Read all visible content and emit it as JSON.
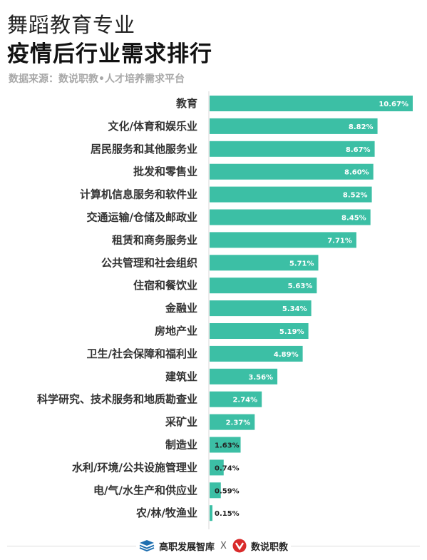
{
  "header": {
    "title_line1": "舞蹈教育专业",
    "title_line2": "疫情后行业需求排行",
    "source": "数据来源：数说职教•人才培养需求平台"
  },
  "footer": {
    "brand_left": "高职发展智库",
    "separator": "X",
    "brand_right": "数说职教"
  },
  "colors": {
    "bar": "#3cbfa5",
    "axis": "#d8d8d8",
    "logo_left": "#1f6fb0",
    "logo_right": "#d92b2b"
  },
  "chart_data": {
    "type": "bar",
    "orientation": "horizontal",
    "categories": [
      "教育",
      "文化/体育和娱乐业",
      "居民服务和其他服务业",
      "批发和零售业",
      "计算机信息服务和软件业",
      "交通运输/仓储及邮政业",
      "租赁和商务服务业",
      "公共管理和社会组织",
      "住宿和餐饮业",
      "金融业",
      "房地产业",
      "卫生/社会保障和福利业",
      "建筑业",
      "科学研究、技术服务和地质勘查业",
      "采矿业",
      "制造业",
      "水利/环境/公共设施管理业",
      "电/气/水生产和供应业",
      "农/林/牧渔业"
    ],
    "values": [
      10.67,
      8.82,
      8.67,
      8.6,
      8.52,
      8.45,
      7.71,
      5.71,
      5.63,
      5.34,
      5.19,
      4.89,
      3.56,
      2.74,
      2.37,
      1.63,
      0.74,
      0.59,
      0.15
    ],
    "value_labels": [
      "10.67%",
      "8.82%",
      "8.67%",
      "8.60%",
      "8.52%",
      "8.45%",
      "7.71%",
      "5.71%",
      "5.63%",
      "5.34%",
      "5.19%",
      "4.89%",
      "3.56%",
      "2.74%",
      "2.37%",
      "1.63%",
      "0.74%",
      "0.59%",
      "0.15%"
    ],
    "unit": "%",
    "xlim": [
      0,
      10.67
    ],
    "grid": false,
    "legend": "none"
  }
}
